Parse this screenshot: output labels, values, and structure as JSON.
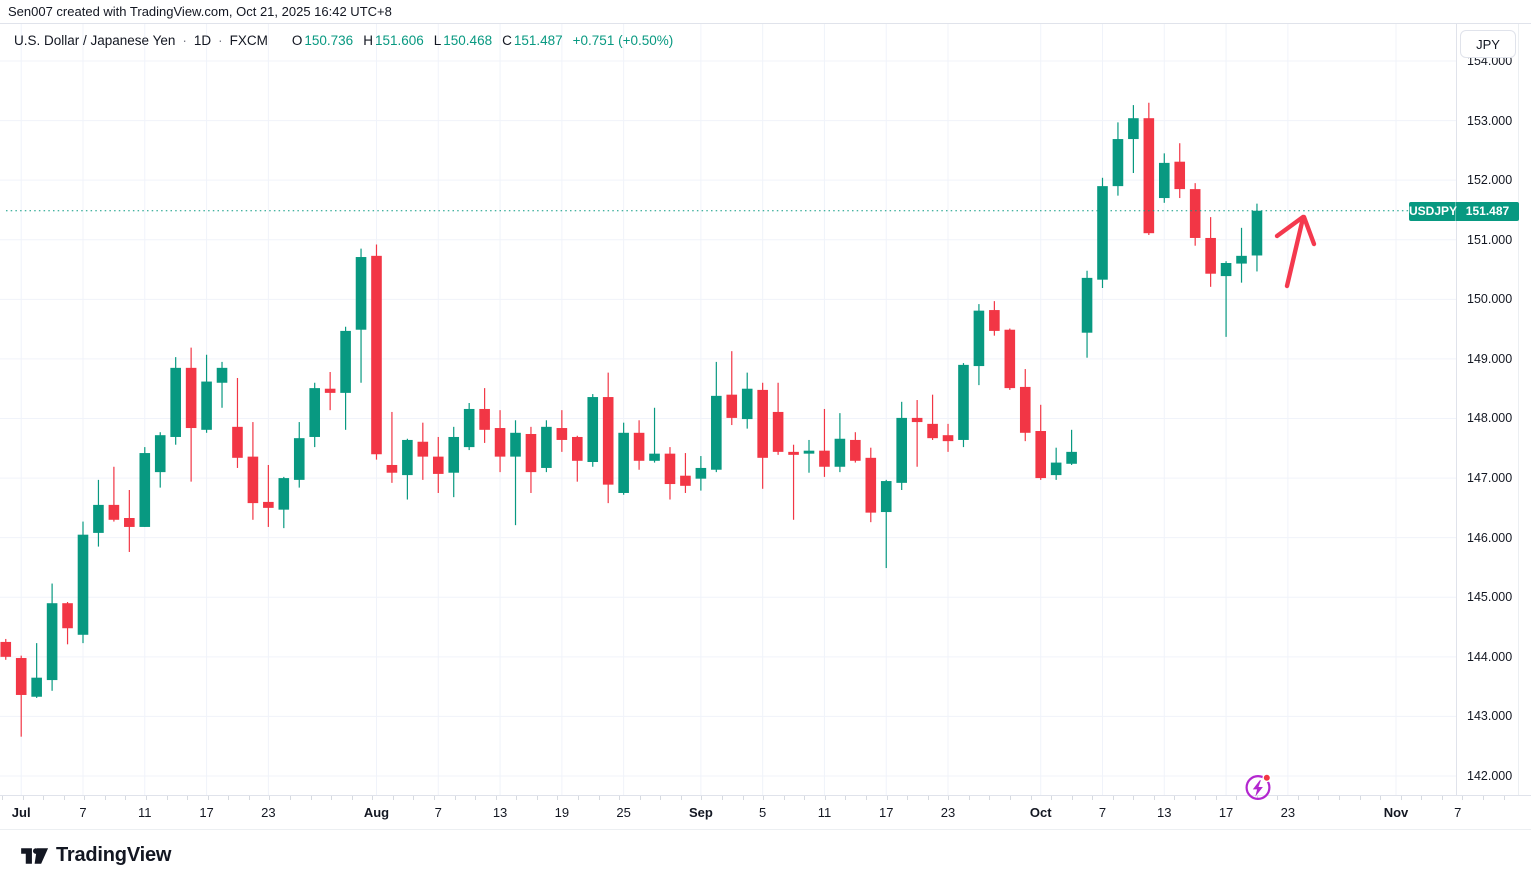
{
  "attribution": "Sen007 created with TradingView.com, Oct 21, 2025 16:42 UTC+8",
  "header": {
    "symbol_title": "U.S. Dollar / Japanese Yen",
    "separator": "·",
    "timeframe": "1D",
    "exchange": "FXCM",
    "ohlc": {
      "o_label": "O",
      "o": "150.736",
      "h_label": "H",
      "h": "151.606",
      "l_label": "L",
      "l": "150.468",
      "c_label": "C",
      "c": "151.487",
      "change": "+0.751 (+0.50%)"
    }
  },
  "price_scale": {
    "currency_button": "JPY",
    "last_price_badge": {
      "symbol": "USDJPY",
      "price": "151.487"
    }
  },
  "footer": {
    "brand": "TradingView"
  },
  "chart_data": {
    "type": "candlestick",
    "title": "U.S. Dollar / Japanese Yen",
    "symbol": "USDJPY",
    "timeframe": "1D",
    "exchange": "FXCM",
    "last_price": 151.487,
    "price_line": {
      "value": 151.487,
      "style": "dotted",
      "color": "#089981"
    },
    "colors": {
      "up": "#089981",
      "down": "#f23645",
      "grid": "#f0f3fa"
    },
    "grid": true,
    "y_axis": {
      "label": "JPY",
      "min": 142,
      "max": 154,
      "tick_step": 1,
      "tick_labels": [
        "154.000",
        "153.000",
        "152.000",
        "151.000",
        "150.000",
        "149.000",
        "148.000",
        "147.000",
        "146.000",
        "145.000",
        "144.000",
        "143.000",
        "142.000"
      ]
    },
    "x_axis": {
      "ticks": [
        {
          "label": "Jul",
          "bar": 1,
          "major": true
        },
        {
          "label": "7",
          "bar": 5
        },
        {
          "label": "11",
          "bar": 9
        },
        {
          "label": "17",
          "bar": 13
        },
        {
          "label": "23",
          "bar": 17
        },
        {
          "label": "Aug",
          "bar": 24,
          "major": true
        },
        {
          "label": "7",
          "bar": 28
        },
        {
          "label": "13",
          "bar": 32
        },
        {
          "label": "19",
          "bar": 36
        },
        {
          "label": "25",
          "bar": 40
        },
        {
          "label": "Sep",
          "bar": 45,
          "major": true
        },
        {
          "label": "5",
          "bar": 49
        },
        {
          "label": "11",
          "bar": 53
        },
        {
          "label": "17",
          "bar": 57
        },
        {
          "label": "23",
          "bar": 61
        },
        {
          "label": "Oct",
          "bar": 67,
          "major": true
        },
        {
          "label": "7",
          "bar": 71
        },
        {
          "label": "13",
          "bar": 75
        },
        {
          "label": "17",
          "bar": 79
        },
        {
          "label": "23",
          "bar": 83
        },
        {
          "label": "Nov",
          "bar": 90,
          "major": true
        },
        {
          "label": "7",
          "bar": 94
        }
      ]
    },
    "candles": [
      [
        "Jun 30",
        144.25,
        144.3,
        143.95,
        144.0
      ],
      [
        "Jul 1",
        143.98,
        144.02,
        142.66,
        143.36
      ],
      [
        "Jul 2",
        143.33,
        144.23,
        143.31,
        143.65
      ],
      [
        "Jul 3",
        143.61,
        145.23,
        143.43,
        144.9
      ],
      [
        "Jul 4",
        144.9,
        144.92,
        144.21,
        144.48
      ],
      [
        "Jul 7",
        144.37,
        146.27,
        144.23,
        146.05
      ],
      [
        "Jul 8",
        146.08,
        146.97,
        145.85,
        146.55
      ],
      [
        "Jul 9",
        146.55,
        147.19,
        146.27,
        146.3
      ],
      [
        "Jul 10",
        146.33,
        146.8,
        145.76,
        146.18
      ],
      [
        "Jul 11",
        146.18,
        147.52,
        146.18,
        147.42
      ],
      [
        "Jul 14",
        147.1,
        147.77,
        146.84,
        147.72
      ],
      [
        "Jul 15",
        147.69,
        149.03,
        147.56,
        148.85
      ],
      [
        "Jul 16",
        148.85,
        149.19,
        146.94,
        147.84
      ],
      [
        "Jul 17",
        147.81,
        149.07,
        147.76,
        148.62
      ],
      [
        "Jul 18",
        148.6,
        148.95,
        148.18,
        148.85
      ],
      [
        "Jul 21",
        147.86,
        148.68,
        147.17,
        147.34
      ],
      [
        "Jul 22",
        147.36,
        147.94,
        146.3,
        146.58
      ],
      [
        "Jul 23",
        146.6,
        147.22,
        146.18,
        146.5
      ],
      [
        "Jul 24",
        146.47,
        147.02,
        146.16,
        147.0
      ],
      [
        "Jul 25",
        146.97,
        147.94,
        146.84,
        147.67
      ],
      [
        "Jul 28",
        147.69,
        148.6,
        147.52,
        148.51
      ],
      [
        "Jul 29",
        148.5,
        148.78,
        148.14,
        148.43
      ],
      [
        "Jul 30",
        148.43,
        149.54,
        147.81,
        149.47
      ],
      [
        "Jul 31",
        149.49,
        150.85,
        148.6,
        150.71
      ],
      [
        "Aug 1",
        150.73,
        150.92,
        147.31,
        147.4
      ],
      [
        "Aug 4",
        147.22,
        148.11,
        146.92,
        147.09
      ],
      [
        "Aug 5",
        147.05,
        147.66,
        146.64,
        147.64
      ],
      [
        "Aug 6",
        147.61,
        147.93,
        146.97,
        147.36
      ],
      [
        "Aug 7",
        147.36,
        147.69,
        146.75,
        147.07
      ],
      [
        "Aug 8",
        147.09,
        147.86,
        146.68,
        147.69
      ],
      [
        "Aug 11",
        147.52,
        148.26,
        147.47,
        148.16
      ],
      [
        "Aug 12",
        148.16,
        148.51,
        147.59,
        147.81
      ],
      [
        "Aug 13",
        147.84,
        148.14,
        147.1,
        147.36
      ],
      [
        "Aug 14",
        147.36,
        147.97,
        146.21,
        147.76
      ],
      [
        "Aug 15",
        147.74,
        147.86,
        146.75,
        147.1
      ],
      [
        "Aug 18",
        147.17,
        147.97,
        147.1,
        147.86
      ],
      [
        "Aug 19",
        147.84,
        148.14,
        147.44,
        147.64
      ],
      [
        "Aug 20",
        147.69,
        147.71,
        146.94,
        147.29
      ],
      [
        "Aug 21",
        147.27,
        148.41,
        147.19,
        148.36
      ],
      [
        "Aug 22",
        148.36,
        148.77,
        146.58,
        146.89
      ],
      [
        "Aug 25",
        146.75,
        147.93,
        146.72,
        147.76
      ],
      [
        "Aug 26",
        147.76,
        147.97,
        147.14,
        147.29
      ],
      [
        "Aug 27",
        147.29,
        148.18,
        147.26,
        147.41
      ],
      [
        "Aug 28",
        147.41,
        147.52,
        146.64,
        146.9
      ],
      [
        "Aug 29",
        147.04,
        147.42,
        146.75,
        146.87
      ],
      [
        "Sep 1",
        146.99,
        147.37,
        146.79,
        147.17
      ],
      [
        "Sep 2",
        147.14,
        148.95,
        147.1,
        148.38
      ],
      [
        "Sep 3",
        148.4,
        149.13,
        147.89,
        148.01
      ],
      [
        "Sep 4",
        147.99,
        148.77,
        147.83,
        148.5
      ],
      [
        "Sep 5",
        148.48,
        148.6,
        146.82,
        147.34
      ],
      [
        "Sep 8",
        148.11,
        148.6,
        147.39,
        147.44
      ],
      [
        "Sep 9",
        147.44,
        147.56,
        146.3,
        147.39
      ],
      [
        "Sep 10",
        147.41,
        147.64,
        147.09,
        147.46
      ],
      [
        "Sep 11",
        147.46,
        148.16,
        147.02,
        147.19
      ],
      [
        "Sep 12",
        147.19,
        148.09,
        147.1,
        147.66
      ],
      [
        "Sep 15",
        147.64,
        147.77,
        147.26,
        147.29
      ],
      [
        "Sep 16",
        147.34,
        147.51,
        146.26,
        146.42
      ],
      [
        "Sep 17",
        146.43,
        146.97,
        145.49,
        146.95
      ],
      [
        "Sep 18",
        146.92,
        148.28,
        146.8,
        148.01
      ],
      [
        "Sep 19",
        148.01,
        148.31,
        147.19,
        147.94
      ],
      [
        "Sep 22",
        147.91,
        148.4,
        147.64,
        147.67
      ],
      [
        "Sep 23",
        147.72,
        147.91,
        147.44,
        147.62
      ],
      [
        "Sep 24",
        147.64,
        148.93,
        147.52,
        148.9
      ],
      [
        "Sep 25",
        148.88,
        149.92,
        148.56,
        149.81
      ],
      [
        "Sep 26",
        149.82,
        149.97,
        149.39,
        149.47
      ],
      [
        "Sep 29",
        149.49,
        149.51,
        148.48,
        148.51
      ],
      [
        "Sep 30",
        148.53,
        148.83,
        147.62,
        147.76
      ],
      [
        "Oct 1",
        147.79,
        148.23,
        146.97,
        147.0
      ],
      [
        "Oct 2",
        147.05,
        147.51,
        146.97,
        147.26
      ],
      [
        "Oct 3",
        147.24,
        147.81,
        147.22,
        147.44
      ],
      [
        "Oct 6",
        149.44,
        150.48,
        149.02,
        150.36
      ],
      [
        "Oct 7",
        150.33,
        152.04,
        150.19,
        151.9
      ],
      [
        "Oct 8",
        151.9,
        152.97,
        151.74,
        152.69
      ],
      [
        "Oct 9",
        152.69,
        153.26,
        152.12,
        153.04
      ],
      [
        "Oct 10",
        153.04,
        153.3,
        151.08,
        151.11
      ],
      [
        "Oct 13",
        151.7,
        152.45,
        151.62,
        152.29
      ],
      [
        "Oct 14",
        152.31,
        152.62,
        151.7,
        151.85
      ],
      [
        "Oct 15",
        151.85,
        151.95,
        150.9,
        151.03
      ],
      [
        "Oct 16",
        151.03,
        151.38,
        150.21,
        150.43
      ],
      [
        "Oct 17",
        150.39,
        150.64,
        149.37,
        150.61
      ],
      [
        "Oct 20",
        150.6,
        151.2,
        150.28,
        150.73
      ],
      [
        "Oct 21",
        150.736,
        151.606,
        150.468,
        151.487
      ]
    ],
    "annotations": [
      {
        "type": "arrow-up",
        "color": "#f4394e",
        "meaning": "hand-drawn upward arrow near latest candles"
      }
    ],
    "event_icon": {
      "name": "lightning-icon",
      "bar": 81,
      "color": "#b327cf",
      "badge_color": "#f23645"
    }
  }
}
